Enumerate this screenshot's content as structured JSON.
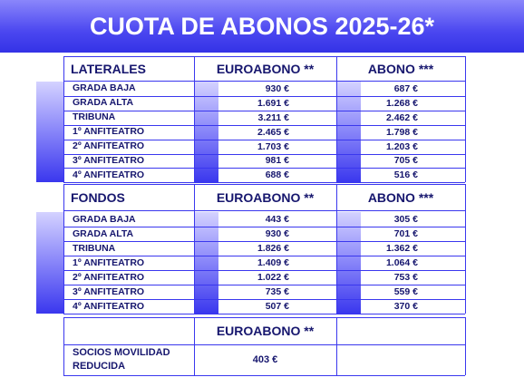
{
  "header": {
    "title": "CUOTA DE ABONOS 2025-26*"
  },
  "sections": [
    {
      "title": "LATERALES",
      "columns": [
        "EUROABONO **",
        "ABONO ***"
      ],
      "rows": [
        [
          "GRADA BAJA",
          "930 €",
          "687 €"
        ],
        [
          "GRADA ALTA",
          "1.691 €",
          "1.268 €"
        ],
        [
          "TRIBUNA",
          "3.211 €",
          "2.462 €"
        ],
        [
          "1º ANFITEATRO",
          "2.465 €",
          "1.798 €"
        ],
        [
          "2º ANFITEATRO",
          "1.703 €",
          "1.203 €"
        ],
        [
          "3º ANFITEATRO",
          "981 €",
          "705 €"
        ],
        [
          "4º ANFITEATRO",
          "688 €",
          "516 €"
        ]
      ]
    },
    {
      "title": "FONDOS",
      "columns": [
        "EUROABONO **",
        "ABONO ***"
      ],
      "rows": [
        [
          "GRADA BAJA",
          "443 €",
          "305 €"
        ],
        [
          "GRADA ALTA",
          "930 €",
          "701 €"
        ],
        [
          "TRIBUNA",
          "1.826 €",
          "1.362 €"
        ],
        [
          "1º ANFITEATRO",
          "1.409 €",
          "1.064 €"
        ],
        [
          "2º ANFITEATRO",
          "1.022 €",
          "753 €"
        ],
        [
          "3º ANFITEATRO",
          "735 €",
          "559 €"
        ],
        [
          "4º ANFITEATRO",
          "507 €",
          "370 €"
        ]
      ]
    },
    {
      "columns": [
        "EUROABONO **"
      ],
      "rows": [
        [
          "SOCIOS MOVILIDAD REDUCIDA",
          "403 €"
        ]
      ]
    }
  ]
}
